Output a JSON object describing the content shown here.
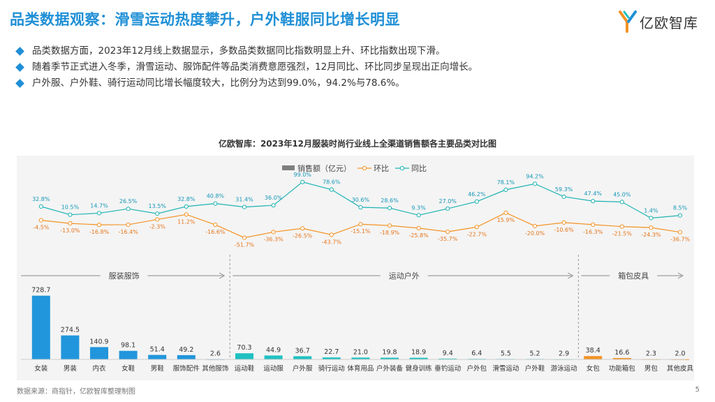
{
  "header": {
    "title": "品类数据观察：滑雪运动热度攀升，户外鞋服同比增长明显",
    "logo_text": "亿欧智库"
  },
  "bullets": [
    "品类数据方面，2023年12月线上数据显示，多数品类数据同比指数明显上升、环比指数出现下滑。",
    "随着季节正式进入冬季，滑雪运动、服饰配件等品类消费意愿强烈，12月同比、环比同步呈现出正向增长。",
    "户外服、户外鞋、骑行运动同比增长幅度较大，比例分为达到99.0%，94.2%与78.6%。"
  ],
  "colors": {
    "accent": "#1f8fd6",
    "bar_apparel": "#2196dc",
    "bar_sports": "#1fc1c1",
    "bar_bags": "#f39325",
    "line_mom": "#f39325",
    "line_yoy": "#1fb3b3",
    "legend_bar": "#7f7f7f"
  },
  "chart_data": {
    "type": "bar",
    "title": "亿欧智库：2023年12月服装时尚行业线上全渠道销售额各主要品类对比图",
    "legend": [
      "销售额（亿元）",
      "环比",
      "同比"
    ],
    "groups": [
      {
        "label": "服装服饰",
        "start": 0,
        "end": 6
      },
      {
        "label": "运动户外",
        "start": 7,
        "end": 18
      },
      {
        "label": "箱包皮具",
        "start": 19,
        "end": 22
      }
    ],
    "categories": [
      "女装",
      "男装",
      "内衣",
      "女鞋",
      "男鞋",
      "服饰配件",
      "其他服饰",
      "运动鞋",
      "运动服",
      "户外服",
      "骑行运动",
      "体育用品",
      "户外装备",
      "健身训练",
      "垂钓运动",
      "户外包",
      "滑雪运动",
      "户外鞋",
      "游泳运动",
      "女包",
      "功能箱包",
      "男包",
      "其他皮具"
    ],
    "series": [
      {
        "name": "销售额（亿元）",
        "kind": "bar",
        "values": [
          728.7,
          274.5,
          140.9,
          98.1,
          51.4,
          49.2,
          2.6,
          70.3,
          44.9,
          36.7,
          22.7,
          21.0,
          19.8,
          18.9,
          9.4,
          6.4,
          5.5,
          5.2,
          2.9,
          38.4,
          16.6,
          2.3,
          2.0
        ]
      },
      {
        "name": "环比",
        "kind": "line",
        "values": [
          -4.5,
          -13.0,
          -16.8,
          -16.4,
          -2.3,
          11.2,
          -16.6,
          -51.7,
          -36.3,
          -26.5,
          -43.7,
          -15.1,
          -18.9,
          -25.8,
          -35.7,
          -22.7,
          15.9,
          -20.0,
          -10.6,
          -16.3,
          -21.5,
          -24.3,
          -36.7
        ]
      },
      {
        "name": "同比",
        "kind": "line",
        "values": [
          32.8,
          10.5,
          14.7,
          26.5,
          13.5,
          32.8,
          40.8,
          31.4,
          36.0,
          99.0,
          78.6,
          30.6,
          28.6,
          9.3,
          27.0,
          46.2,
          78.1,
          94.2,
          59.3,
          47.4,
          45.0,
          1.4,
          8.5
        ]
      }
    ],
    "bar_labels": [
      "728.7",
      "274.5",
      "140.9",
      "98.1",
      "51.4",
      "49.2",
      "2.6",
      "70.3",
      "44.9",
      "36.7",
      "22.7",
      "21.0",
      "19.8",
      "18.9",
      "9.4",
      "6.4",
      "5.5",
      "5.2",
      "2.9",
      "38.4",
      "16.6",
      "2.3",
      "2.0"
    ],
    "mom_labels": [
      "-4.5%",
      "-13.0%",
      "-16.8%",
      "-16.4%",
      "-2.3%",
      "11.2%",
      "-16.6%",
      "-51.7%",
      "-36.3%",
      "-26.5%",
      "-43.7%",
      "-15.1%",
      "-18.9%",
      "-25.8%",
      "-35.7%",
      "-22.7%",
      "15.9%",
      "-20.0%",
      "-10.6%",
      "-16.3%",
      "-21.5%",
      "-24.3%",
      "-36.7%"
    ],
    "yoy_labels": [
      "32.8%",
      "10.5%",
      "14.7%",
      "26.5%",
      "13.5%",
      "32.8%",
      "40.8%",
      "31.4%",
      "36.0%",
      "99.0%",
      "78.6%",
      "30.6%",
      "28.6%",
      "9.3%",
      "27.0%",
      "46.2%",
      "78.1%",
      "94.2%",
      "59.3%",
      "47.4%",
      "45.0%",
      "1.4%",
      "8.5%"
    ],
    "bar_ylim": [
      0,
      750
    ],
    "line_ylim": [
      -60,
      110
    ]
  },
  "footer": {
    "source": "数据来源：商指针，亿欧智库整理制图",
    "page": "5"
  }
}
